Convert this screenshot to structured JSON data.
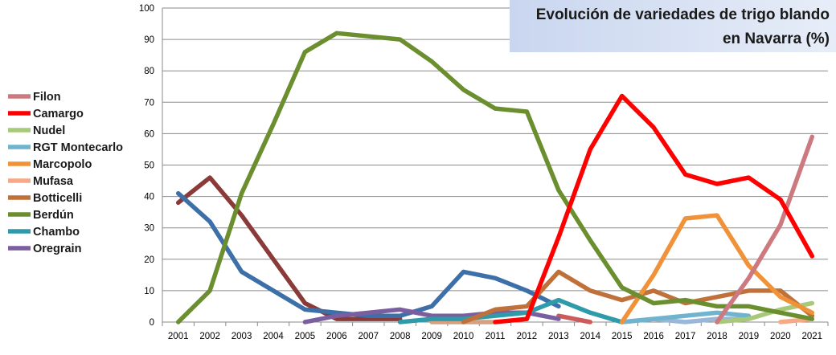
{
  "chart_data": {
    "type": "line",
    "title": "Evolución de variedades de trigo blando en Navarra (%)",
    "title_lines": [
      "Evolución de variedades de trigo blando",
      "en Navarra (%)"
    ],
    "xlabel": "",
    "ylabel": "",
    "x": [
      "2001",
      "2002",
      "2003",
      "2004",
      "2005",
      "2006",
      "2007",
      "2008",
      "2009",
      "2010",
      "2011",
      "2012",
      "2013",
      "2014",
      "2015",
      "2016",
      "2017",
      "2018",
      "2019",
      "2020",
      "2021"
    ],
    "y_ticks": [
      "0",
      "10",
      "20",
      "30",
      "40",
      "50",
      "60",
      "70",
      "80",
      "90",
      "100"
    ],
    "ylim": [
      0,
      100
    ],
    "grid": true,
    "legend_position": "left",
    "series": [
      {
        "name": "Filon",
        "color": "#cc7a7f",
        "values": [
          null,
          null,
          null,
          null,
          null,
          null,
          null,
          null,
          null,
          null,
          null,
          null,
          null,
          null,
          null,
          null,
          null,
          0,
          14,
          31,
          59
        ]
      },
      {
        "name": "Camargo",
        "color": "#ff0000",
        "values": [
          null,
          null,
          null,
          null,
          null,
          null,
          null,
          null,
          null,
          null,
          0,
          1,
          27,
          55,
          72,
          62,
          47,
          44,
          46,
          39,
          21
        ]
      },
      {
        "name": "Nudel",
        "color": "#a9c97a",
        "values": [
          null,
          null,
          null,
          null,
          null,
          null,
          null,
          null,
          null,
          null,
          null,
          null,
          null,
          null,
          null,
          null,
          null,
          0,
          1,
          4,
          6
        ]
      },
      {
        "name": "RGT Montecarlo",
        "color": "#6fb3cf",
        "values": [
          null,
          null,
          null,
          null,
          null,
          null,
          null,
          null,
          null,
          null,
          null,
          null,
          null,
          null,
          0,
          1,
          2,
          3,
          2,
          null,
          null
        ]
      },
      {
        "name": "Marcopolo",
        "color": "#f0923a",
        "values": [
          null,
          null,
          null,
          null,
          null,
          null,
          null,
          null,
          null,
          null,
          null,
          null,
          null,
          null,
          0,
          15,
          33,
          34,
          18,
          8,
          3
        ]
      },
      {
        "name": "Mufasa",
        "color": "#f7a985",
        "values": [
          null,
          null,
          null,
          null,
          null,
          null,
          null,
          null,
          null,
          null,
          null,
          null,
          null,
          null,
          null,
          null,
          null,
          null,
          null,
          0,
          1
        ]
      },
      {
        "name": "Botticelli",
        "color": "#c0713a",
        "values": [
          null,
          null,
          null,
          null,
          null,
          null,
          null,
          null,
          null,
          0,
          4,
          5,
          16,
          10,
          7,
          10,
          6,
          8,
          10,
          10,
          2
        ]
      },
      {
        "name": "Berdún",
        "color": "#6b8e2e",
        "values": [
          0,
          10,
          41,
          63,
          86,
          92,
          91,
          90,
          83,
          74,
          68,
          67,
          42,
          26,
          11,
          6,
          7,
          5,
          5,
          3,
          1
        ]
      },
      {
        "name": "Chambo",
        "color": "#2f9aaa",
        "values": [
          null,
          null,
          null,
          null,
          null,
          null,
          null,
          0,
          1,
          1,
          2,
          3,
          7,
          3,
          0,
          null,
          null,
          null,
          null,
          null,
          null
        ]
      },
      {
        "name": "Oregrain",
        "color": "#7b5ea0",
        "values": [
          null,
          null,
          null,
          null,
          0,
          2,
          3,
          4,
          2,
          2,
          3,
          3,
          1,
          null,
          null,
          null,
          null,
          null,
          null,
          null,
          null
        ]
      }
    ],
    "unlisted_series": [
      {
        "color": "#8b3a3a",
        "values": [
          38,
          46,
          34,
          20,
          6,
          1,
          1,
          1,
          null,
          null,
          null,
          null,
          null,
          null,
          null,
          null,
          null,
          null,
          null,
          null,
          null
        ]
      },
      {
        "color": "#3d6fa8",
        "values": [
          41,
          32,
          16,
          10,
          4,
          3,
          2,
          2,
          5,
          16,
          14,
          10,
          5,
          null,
          null,
          null,
          null,
          null,
          null,
          null,
          null
        ]
      },
      {
        "color": "#d4a080",
        "values": [
          null,
          null,
          null,
          null,
          null,
          null,
          null,
          null,
          0,
          0,
          0,
          null,
          null,
          null,
          null,
          null,
          null,
          null,
          null,
          null,
          null
        ]
      },
      {
        "color": "#cc5b5b",
        "values": [
          null,
          null,
          null,
          null,
          null,
          null,
          null,
          null,
          null,
          null,
          null,
          null,
          2,
          0,
          null,
          null,
          null,
          null,
          null,
          null,
          null
        ]
      },
      {
        "color": "#9ab7d9",
        "values": [
          null,
          null,
          null,
          null,
          null,
          null,
          null,
          null,
          null,
          null,
          null,
          null,
          null,
          null,
          0,
          1,
          0,
          1,
          1,
          null,
          null
        ]
      }
    ]
  }
}
